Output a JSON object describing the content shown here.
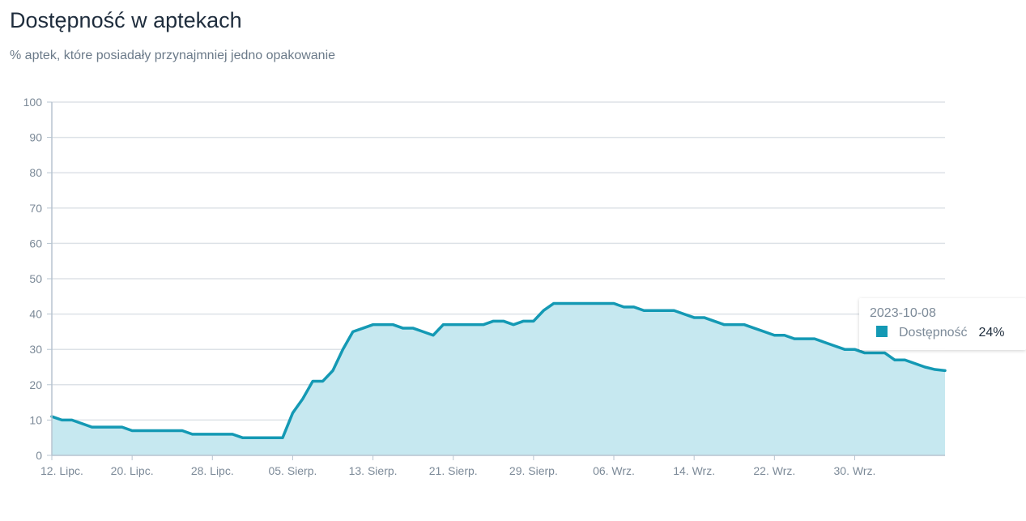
{
  "title": "Dostępność w aptekach",
  "subtitle": "% aptek, które posiadały przynajmniej jedno opakowanie",
  "colors": {
    "line": "#1499b4",
    "area": "#c6e8f0",
    "grid": "#dde2e7",
    "axis": "#b7c4d0"
  },
  "tooltip": {
    "date": "2023-10-08",
    "series": "Dostępność",
    "value": "24%"
  },
  "chart_data": {
    "type": "area",
    "title": "Dostępność w aptekach",
    "subtitle": "% aptek, które posiadały przynajmniej jedno opakowanie",
    "xlabel": "",
    "ylabel": "",
    "ylim": [
      0,
      100
    ],
    "yticks": [
      0,
      10,
      20,
      30,
      40,
      50,
      60,
      70,
      80,
      90,
      100
    ],
    "grid": true,
    "x_start": "2023-07-12",
    "x_end": "2023-10-08",
    "x_ticks": [
      {
        "day": 0,
        "label": "12. Lipc."
      },
      {
        "day": 8,
        "label": "20. Lipc."
      },
      {
        "day": 16,
        "label": "28. Lipc."
      },
      {
        "day": 24,
        "label": "05. Sierp."
      },
      {
        "day": 32,
        "label": "13. Sierp."
      },
      {
        "day": 40,
        "label": "21. Sierp."
      },
      {
        "day": 48,
        "label": "29. Sierp."
      },
      {
        "day": 56,
        "label": "06. Wrz."
      },
      {
        "day": 64,
        "label": "14. Wrz."
      },
      {
        "day": 72,
        "label": "22. Wrz."
      },
      {
        "day": 80,
        "label": "30. Wrz."
      }
    ],
    "series": [
      {
        "name": "Dostępność",
        "values": [
          11,
          10,
          10,
          9,
          8,
          8,
          8,
          8,
          7,
          7,
          7,
          7,
          7,
          7,
          6,
          6,
          6,
          6,
          6,
          5,
          5,
          5,
          5,
          5,
          12,
          16,
          21,
          21,
          24,
          30,
          35,
          36,
          37,
          37,
          37,
          36,
          36,
          35,
          34,
          37,
          37,
          37,
          37,
          37,
          38,
          38,
          37,
          38,
          38,
          41,
          43,
          43,
          43,
          43,
          43,
          43,
          43,
          42,
          42,
          41,
          41,
          41,
          41,
          40,
          39,
          39,
          38,
          37,
          37,
          37,
          36,
          35,
          34,
          34,
          33,
          33,
          33,
          32,
          31,
          30,
          30,
          29,
          29,
          29,
          27,
          27,
          26,
          25,
          24.3,
          24
        ]
      }
    ]
  }
}
